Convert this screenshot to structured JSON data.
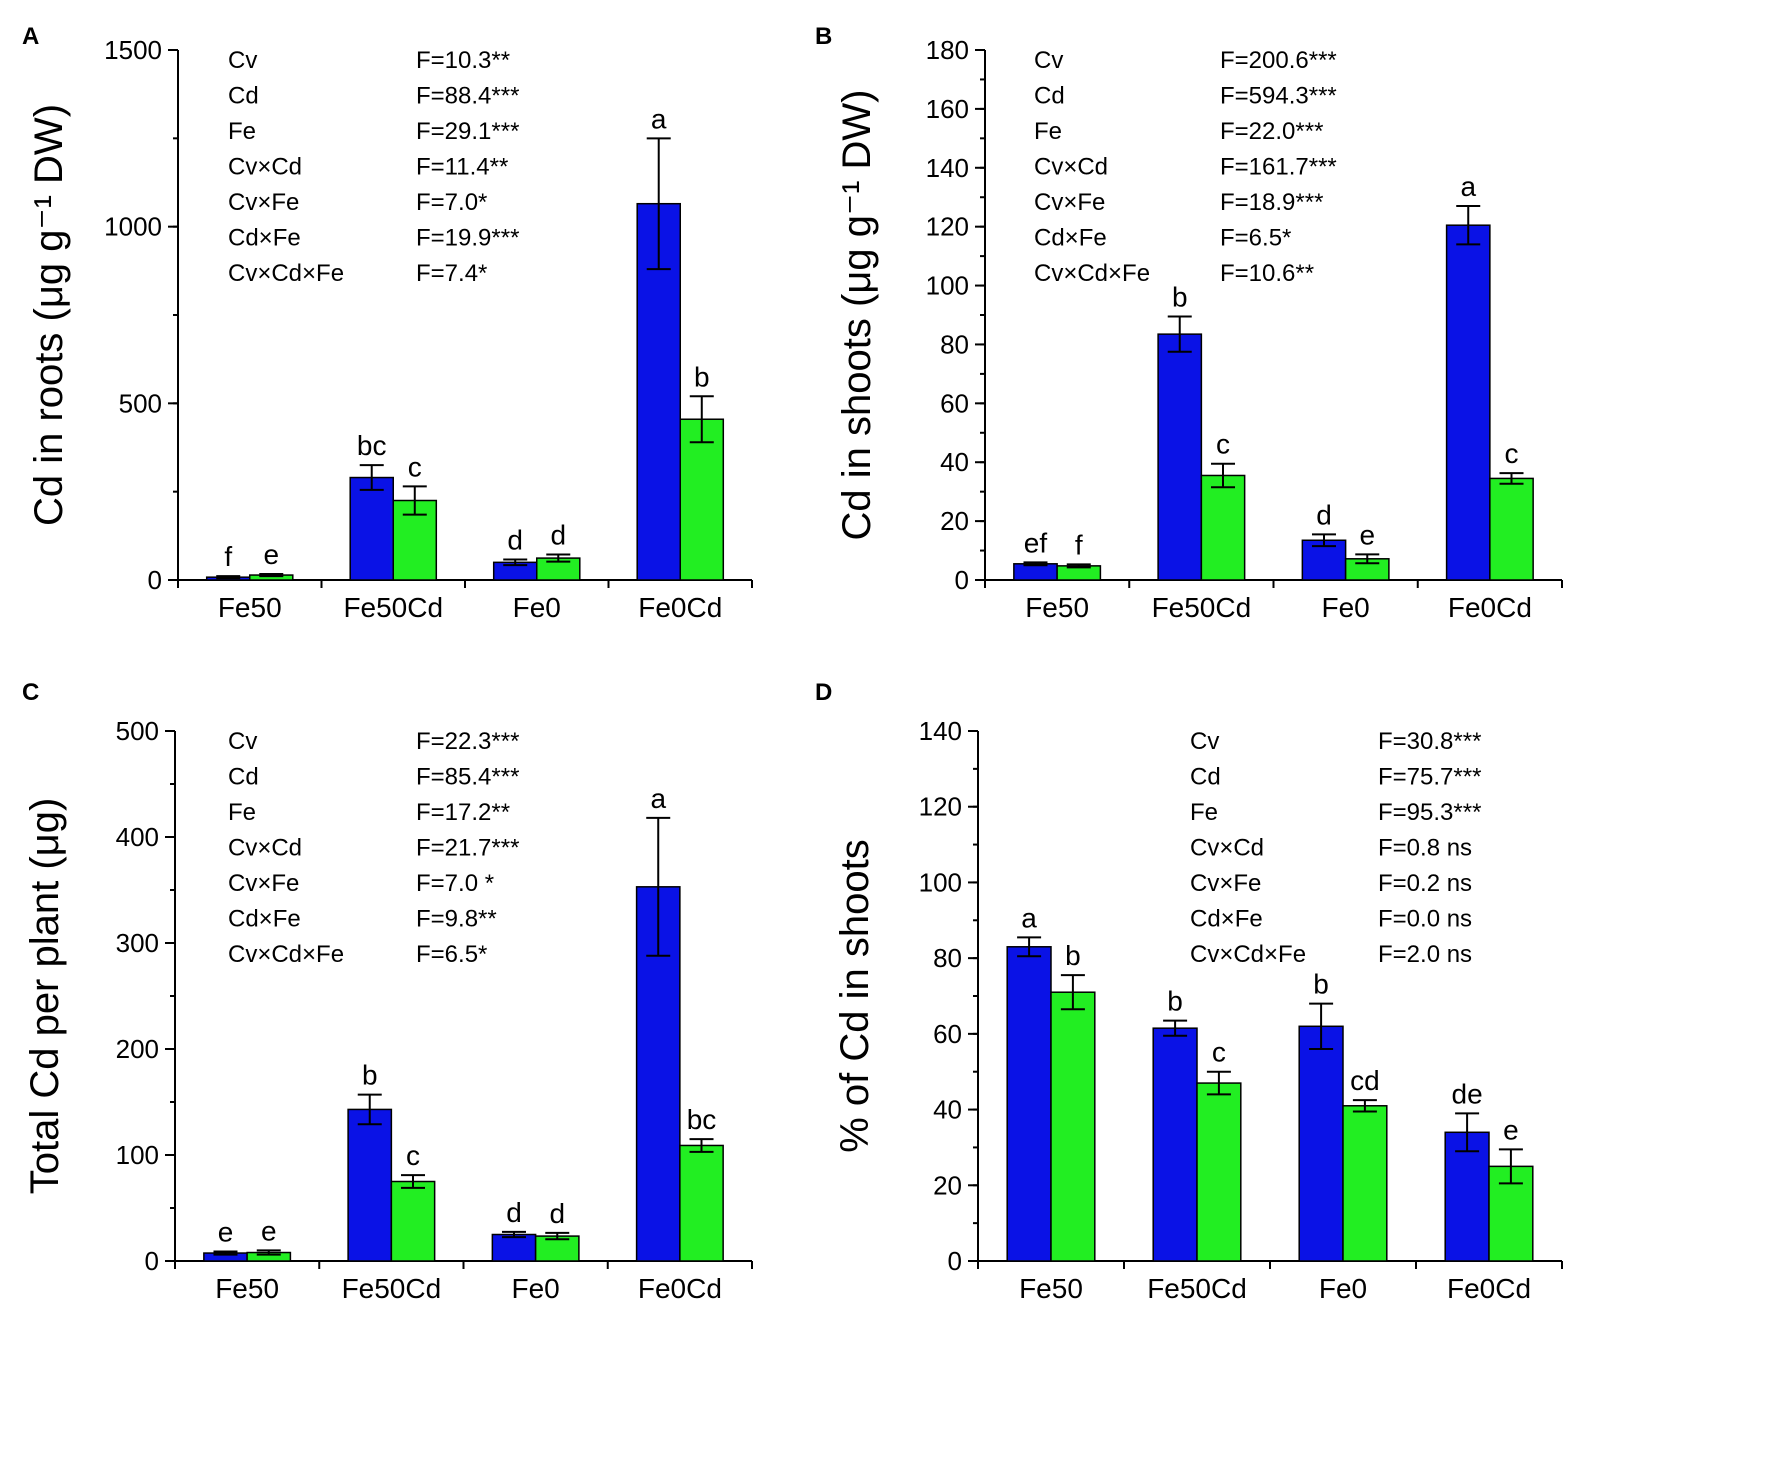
{
  "colors": {
    "series1": "#0a12e6",
    "series2": "#22ee22"
  },
  "chart_data": [
    {
      "id": "A",
      "type": "bar",
      "panel_letter": "A",
      "ylabel": "Cd in roots (μg g⁻¹ DW)",
      "ylim": [
        0,
        1500
      ],
      "yticks": [
        0,
        500,
        1000,
        1500
      ],
      "yminor": 250,
      "categories": [
        "Fe50",
        "Fe50Cd",
        "Fe0",
        "Fe0Cd"
      ],
      "series": [
        {
          "name": "series1",
          "values": [
            8,
            290,
            50,
            1065
          ],
          "errors": [
            3,
            35,
            8,
            185
          ],
          "labels": [
            "f",
            "bc",
            "d",
            "a"
          ]
        },
        {
          "name": "series2",
          "values": [
            14,
            225,
            62,
            455
          ],
          "errors": [
            3,
            40,
            10,
            65
          ],
          "labels": [
            "e",
            "c",
            "d",
            "b"
          ]
        }
      ],
      "stats": [
        {
          "term": "Cv",
          "value": "F=10.3**"
        },
        {
          "term": "Cd",
          "value": "F=88.4***"
        },
        {
          "term": "Fe",
          "value": "F=29.1***"
        },
        {
          "term": "Cv×Cd",
          "value": "F=11.4**"
        },
        {
          "term": "Cv×Fe",
          "value": "F=7.0*"
        },
        {
          "term": "Cd×Fe",
          "value": "F=19.9***"
        },
        {
          "term": "Cv×Cd×Fe",
          "value": "F=7.4*"
        }
      ]
    },
    {
      "id": "B",
      "type": "bar",
      "panel_letter": "B",
      "ylabel": "Cd in shoots (μg g⁻¹ DW)",
      "ylim": [
        0,
        180
      ],
      "yticks": [
        0,
        20,
        40,
        60,
        80,
        100,
        120,
        140,
        160,
        180
      ],
      "yminor": 10,
      "categories": [
        "Fe50",
        "Fe50Cd",
        "Fe0",
        "Fe0Cd"
      ],
      "series": [
        {
          "name": "series1",
          "values": [
            5.5,
            83.5,
            13.5,
            120.5
          ],
          "errors": [
            0.5,
            6,
            2,
            6.5
          ],
          "labels": [
            "ef",
            "b",
            "d",
            "a"
          ]
        },
        {
          "name": "series2",
          "values": [
            4.8,
            35.5,
            7.2,
            34.5
          ],
          "errors": [
            0.5,
            4,
            1.5,
            1.8
          ],
          "labels": [
            "f",
            "c",
            "e",
            "c"
          ]
        }
      ],
      "stats": [
        {
          "term": "Cv",
          "value": "F=200.6***"
        },
        {
          "term": "Cd",
          "value": "F=594.3***"
        },
        {
          "term": "Fe",
          "value": "F=22.0***"
        },
        {
          "term": "Cv×Cd",
          "value": "F=161.7***"
        },
        {
          "term": "Cv×Fe",
          "value": "F=18.9***"
        },
        {
          "term": "Cd×Fe",
          "value": "F=6.5*"
        },
        {
          "term": "Cv×Cd×Fe",
          "value": "F=10.6**"
        }
      ]
    },
    {
      "id": "C",
      "type": "bar",
      "panel_letter": "C",
      "ylabel": "Total Cd per plant (μg)",
      "ylim": [
        0,
        500
      ],
      "yticks": [
        0,
        100,
        200,
        300,
        400,
        500
      ],
      "yminor": 50,
      "categories": [
        "Fe50",
        "Fe50Cd",
        "Fe0",
        "Fe0Cd"
      ],
      "series": [
        {
          "name": "series1",
          "values": [
            7.5,
            143,
            25,
            353
          ],
          "errors": [
            1.5,
            14,
            2.5,
            65
          ],
          "labels": [
            "e",
            "b",
            "d",
            "a"
          ]
        },
        {
          "name": "series2",
          "values": [
            8,
            75,
            23.5,
            109
          ],
          "errors": [
            2,
            6,
            3,
            6
          ],
          "labels": [
            "e",
            "c",
            "d",
            "bc"
          ]
        }
      ],
      "stats": [
        {
          "term": "Cv",
          "value": "F=22.3***"
        },
        {
          "term": "Cd",
          "value": "F=85.4***"
        },
        {
          "term": "Fe",
          "value": "F=17.2**"
        },
        {
          "term": "Cv×Cd",
          "value": "F=21.7***"
        },
        {
          "term": "Cv×Fe",
          "value": "F=7.0 *"
        },
        {
          "term": "Cd×Fe",
          "value": "F=9.8**"
        },
        {
          "term": "Cv×Cd×Fe",
          "value": "F=6.5*"
        }
      ]
    },
    {
      "id": "D",
      "type": "bar",
      "panel_letter": "D",
      "ylabel": "% of Cd in shoots",
      "ylim": [
        0,
        140
      ],
      "yticks": [
        0,
        20,
        40,
        60,
        80,
        100,
        120,
        140
      ],
      "yminor": 10,
      "categories": [
        "Fe50",
        "Fe50Cd",
        "Fe0",
        "Fe0Cd"
      ],
      "series": [
        {
          "name": "series1",
          "values": [
            83,
            61.5,
            62,
            34
          ],
          "errors": [
            2.5,
            2,
            6,
            5
          ],
          "labels": [
            "a",
            "b",
            "b",
            "de"
          ]
        },
        {
          "name": "series2",
          "values": [
            71,
            47,
            41,
            25
          ],
          "errors": [
            4.5,
            3,
            1.5,
            4.5
          ],
          "labels": [
            "b",
            "c",
            "cd",
            "e"
          ]
        }
      ],
      "stats": [
        {
          "term": "Cv",
          "value": "F=30.8***"
        },
        {
          "term": "Cd",
          "value": "F=75.7***"
        },
        {
          "term": "Fe",
          "value": "F=95.3***"
        },
        {
          "term": "Cv×Cd",
          "value": "F=0.8 ns"
        },
        {
          "term": "Cv×Fe",
          "value": "F=0.2 ns"
        },
        {
          "term": "Cd×Fe",
          "value": "F=0.0 ns"
        },
        {
          "term": "Cv×Cd×Fe",
          "value": "F=2.0 ns"
        }
      ]
    }
  ]
}
